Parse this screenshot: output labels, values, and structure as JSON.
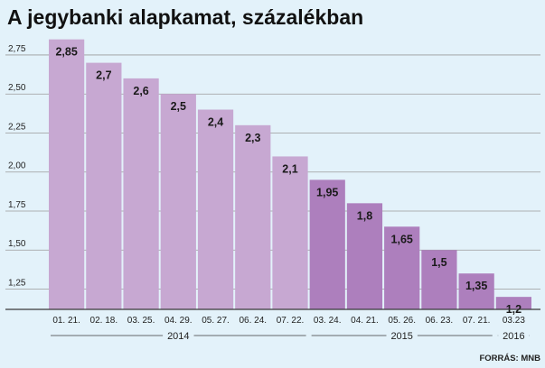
{
  "chart_data": {
    "type": "bar",
    "title": "A jegybanki alapkamat, százalékban",
    "source": "FORRÁS: MNB",
    "categories": [
      "01. 21.",
      "02. 18.",
      "03. 25.",
      "04. 29.",
      "05. 27.",
      "06. 24.",
      "07. 22.",
      "03. 24.",
      "04. 21.",
      "05. 26.",
      "06. 23.",
      "07. 21.",
      "03.23"
    ],
    "values": [
      2.85,
      2.7,
      2.6,
      2.5,
      2.4,
      2.3,
      2.1,
      1.95,
      1.8,
      1.65,
      1.5,
      1.35,
      1.2
    ],
    "value_labels": [
      "2,85",
      "2,7",
      "2,6",
      "2,5",
      "2,4",
      "2,3",
      "2,1",
      "1,95",
      "1,8",
      "1,65",
      "1,5",
      "1,35",
      "1,2"
    ],
    "year_groups": [
      {
        "label": "2014",
        "from": 0,
        "to": 6
      },
      {
        "label": "2015",
        "from": 7,
        "to": 11
      },
      {
        "label": "2016",
        "from": 12,
        "to": 12
      }
    ],
    "yticks": [
      1.25,
      1.5,
      1.75,
      2.0,
      2.25,
      2.5,
      2.75
    ],
    "ytick_labels": [
      "1,25",
      "1,50",
      "1,75",
      "2,00",
      "2,25",
      "2,50",
      "2,75"
    ],
    "ylim": [
      1.12,
      2.9
    ],
    "grid": true,
    "colors": {
      "background": "#e3f2fa",
      "bar_2014": "#c7a8d2",
      "bar_later": "#ad7fbd",
      "grid": "#9a9a9a",
      "axis": "#3a3a3a"
    }
  }
}
